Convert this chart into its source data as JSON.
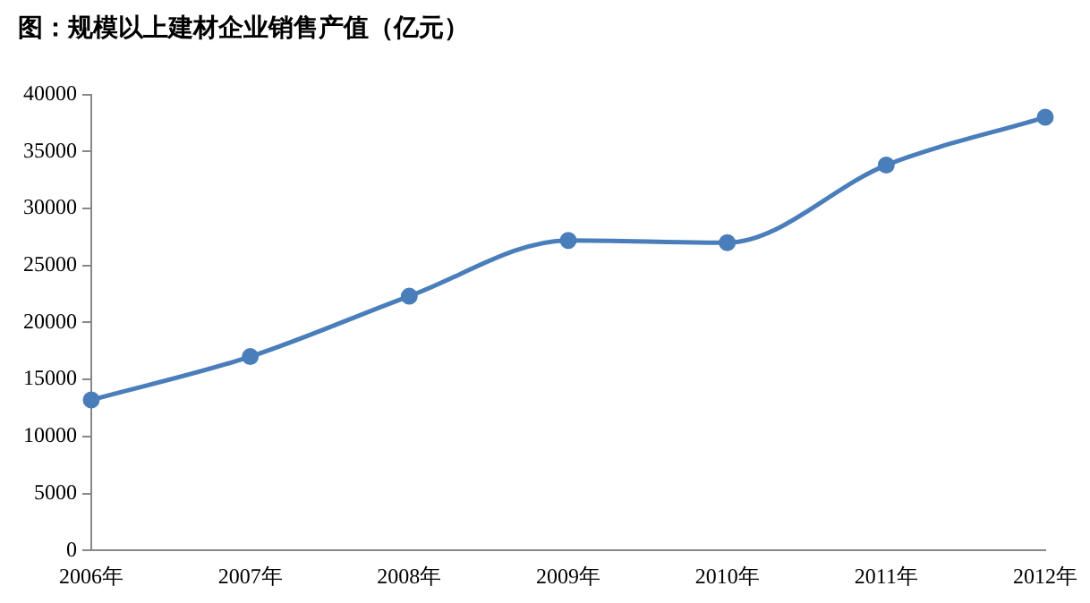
{
  "chart_data": {
    "type": "line",
    "title": "图：规模以上建材企业销售产值（亿元）",
    "categories": [
      "2006年",
      "2007年",
      "2008年",
      "2009年",
      "2010年",
      "2011年",
      "2012年"
    ],
    "series": [
      {
        "color": "#4a7ebb",
        "values": [
          13200,
          17000,
          22300,
          27200,
          27000,
          33800,
          38000
        ]
      }
    ],
    "ylim": [
      0,
      40000
    ],
    "yticks": [
      0,
      5000,
      10000,
      15000,
      20000,
      25000,
      30000,
      35000,
      40000
    ],
    "grid": false,
    "legend": false,
    "marker": "circle",
    "line_style": "solid"
  }
}
